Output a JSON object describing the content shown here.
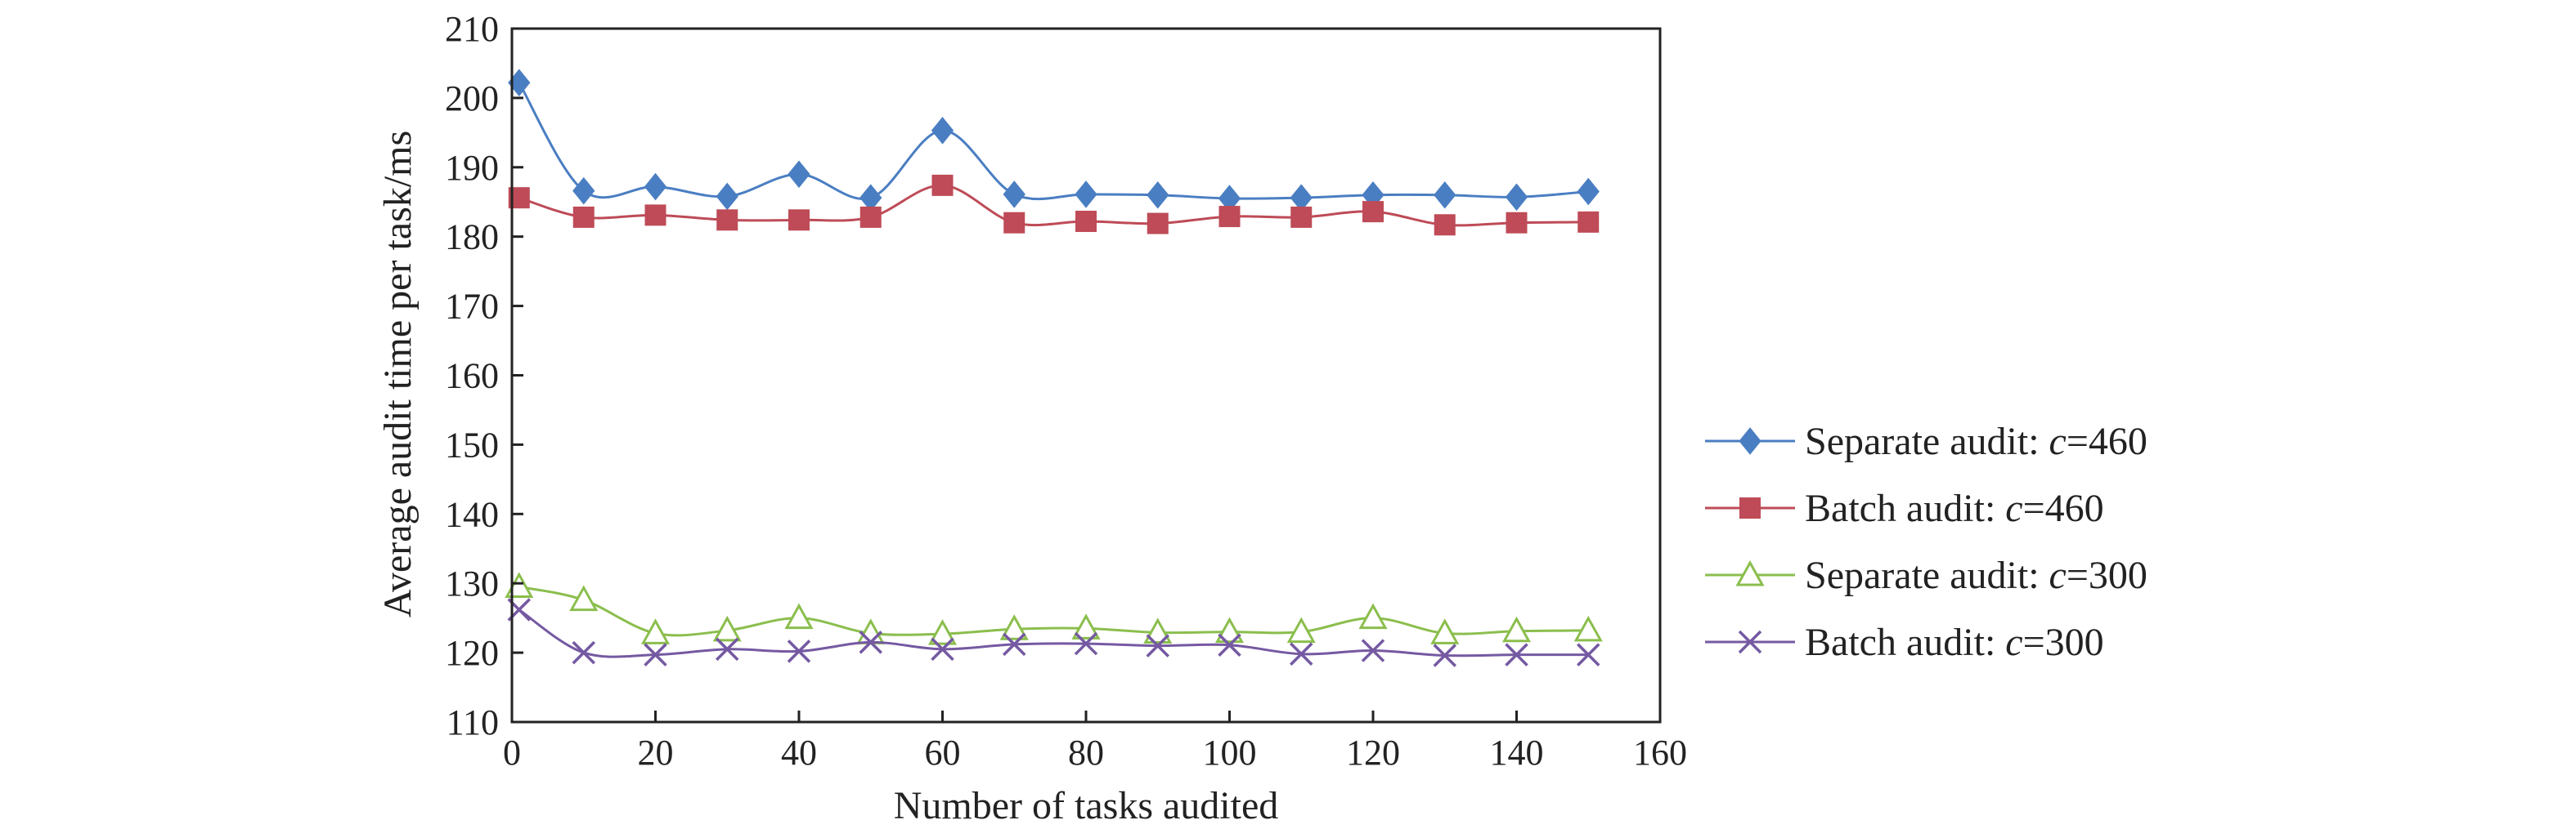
{
  "chart_data": {
    "type": "line",
    "title": "",
    "xlabel": "Number of tasks audited",
    "ylabel": "Average audit time per task/ms",
    "xlim": [
      0,
      160
    ],
    "ylim": [
      110,
      210
    ],
    "xticks": [
      0,
      20,
      40,
      60,
      80,
      100,
      120,
      140,
      160
    ],
    "yticks": [
      110,
      120,
      130,
      140,
      150,
      160,
      170,
      180,
      190,
      200,
      210
    ],
    "grid": false,
    "legend_position": "right",
    "x": [
      1,
      10,
      20,
      30,
      40,
      50,
      60,
      70,
      80,
      90,
      100,
      110,
      120,
      130,
      140,
      150
    ],
    "series": [
      {
        "name": "Separate audit: c=460",
        "legend_prefix": "Separate audit: ",
        "legend_var": "c",
        "legend_suffix": "=460",
        "marker": "diamond",
        "color": "#4A7EC2",
        "values": [
          202.2,
          186.6,
          187.2,
          185.8,
          189.0,
          185.6,
          195.3,
          186.1,
          186.1,
          186.0,
          185.5,
          185.6,
          186.0,
          186.0,
          185.7,
          186.5
        ]
      },
      {
        "name": "Batch audit: c=460",
        "legend_prefix": "Batch audit: ",
        "legend_var": "c",
        "legend_suffix": "=460",
        "marker": "square",
        "color": "#BE4B57",
        "values": [
          185.6,
          182.8,
          183.1,
          182.4,
          182.4,
          182.8,
          187.4,
          182.0,
          182.2,
          181.9,
          182.9,
          182.8,
          183.6,
          181.7,
          182.0,
          182.1
        ]
      },
      {
        "name": "Separate audit: c=300",
        "legend_prefix": "Separate audit: ",
        "legend_var": "c",
        "legend_suffix": "=300",
        "marker": "triangle",
        "color": "#8BBE4D",
        "values": [
          129.5,
          127.6,
          122.8,
          123.2,
          125.0,
          122.8,
          122.7,
          123.4,
          123.5,
          122.9,
          123.0,
          123.0,
          125.0,
          122.8,
          123.1,
          123.2
        ]
      },
      {
        "name": "Batch audit: c=300",
        "legend_prefix": "Batch audit: ",
        "legend_var": "c",
        "legend_suffix": "=300",
        "marker": "x",
        "color": "#7559A2",
        "values": [
          126.2,
          120.0,
          119.7,
          120.5,
          120.2,
          121.5,
          120.5,
          121.2,
          121.3,
          121.0,
          121.1,
          119.8,
          120.3,
          119.6,
          119.7,
          119.7
        ]
      }
    ]
  }
}
